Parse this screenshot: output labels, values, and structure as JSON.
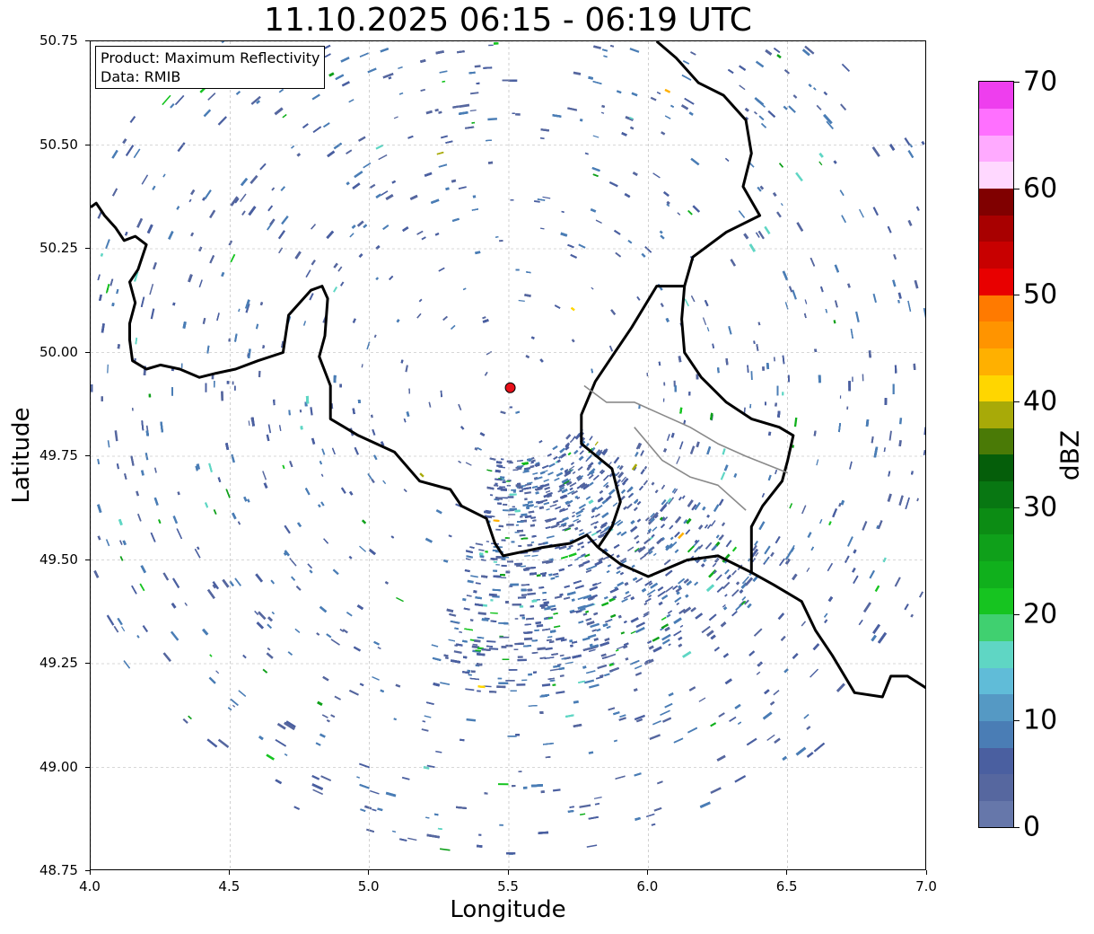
{
  "title": "11.10.2025 06:15 - 06:19 UTC",
  "info_box": {
    "line1": "Product: Maximum Reflectivity",
    "line2": "Data: RMIB"
  },
  "axes": {
    "xlabel": "Longitude",
    "ylabel": "Latitude",
    "xlim": [
      4.0,
      7.0
    ],
    "ylim": [
      48.75,
      50.75
    ],
    "xticks": [
      "4.0",
      "4.5",
      "5.0",
      "5.5",
      "6.0",
      "6.5",
      "7.0"
    ],
    "yticks": [
      "48.75",
      "49.00",
      "49.25",
      "49.50",
      "49.75",
      "50.00",
      "50.25",
      "50.50",
      "50.75"
    ],
    "grid": true
  },
  "radar_site": {
    "lon": 5.505,
    "lat": 49.915,
    "color": "#e8101a"
  },
  "colorbar": {
    "unit": "dBZ",
    "min": 0,
    "max": 70,
    "labels": [
      "0",
      "10",
      "20",
      "30",
      "40",
      "50",
      "60",
      "70"
    ],
    "colors": [
      "#6677aa",
      "#56679f",
      "#4a5fa0",
      "#4a7db5",
      "#5599c4",
      "#60bcd8",
      "#5fd6c4",
      "#40d070",
      "#16c420",
      "#10b01c",
      "#0fa01a",
      "#0c8c14",
      "#087712",
      "#055e0a",
      "#4a7a06",
      "#a8aa08",
      "#ffd600",
      "#ffb000",
      "#ff9400",
      "#ff7a00",
      "#e80000",
      "#c80000",
      "#a80000",
      "#800000",
      "#ffd8ff",
      "#ffaaff",
      "#ff70ff",
      "#ee3eee"
    ]
  },
  "borders": [
    {
      "name": "border-belgium-france-west",
      "color": "#000000",
      "points": [
        [
          4.0,
          50.35
        ],
        [
          4.02,
          50.36
        ],
        [
          4.05,
          50.33
        ],
        [
          4.09,
          50.3
        ],
        [
          4.12,
          50.27
        ],
        [
          4.16,
          50.28
        ],
        [
          4.2,
          50.26
        ],
        [
          4.17,
          50.2
        ],
        [
          4.14,
          50.17
        ],
        [
          4.16,
          50.12
        ],
        [
          4.14,
          50.07
        ],
        [
          4.14,
          50.03
        ],
        [
          4.15,
          49.98
        ],
        [
          4.2,
          49.96
        ],
        [
          4.25,
          49.97
        ],
        [
          4.32,
          49.96
        ],
        [
          4.39,
          49.94
        ],
        [
          4.45,
          49.95
        ],
        [
          4.52,
          49.96
        ],
        [
          4.6,
          49.98
        ],
        [
          4.69,
          50.0
        ],
        [
          4.71,
          50.09
        ],
        [
          4.79,
          50.15
        ],
        [
          4.83,
          50.16
        ],
        [
          4.85,
          50.13
        ],
        [
          4.84,
          50.04
        ],
        [
          4.82,
          49.99
        ],
        [
          4.86,
          49.92
        ],
        [
          4.86,
          49.84
        ],
        [
          4.96,
          49.8
        ],
        [
          5.09,
          49.76
        ],
        [
          5.18,
          49.69
        ],
        [
          5.29,
          49.67
        ],
        [
          5.33,
          49.63
        ],
        [
          5.42,
          49.6
        ],
        [
          5.45,
          49.54
        ],
        [
          5.48,
          49.51
        ],
        [
          5.55,
          49.52
        ],
        [
          5.62,
          49.53
        ],
        [
          5.72,
          49.54
        ],
        [
          5.78,
          49.56
        ],
        [
          5.82,
          49.53
        ]
      ]
    },
    {
      "name": "border-belgium-germany-luxembourg",
      "color": "#000000",
      "points": [
        [
          5.82,
          49.53
        ],
        [
          5.87,
          49.58
        ],
        [
          5.9,
          49.64
        ],
        [
          5.87,
          49.72
        ],
        [
          5.76,
          49.78
        ],
        [
          5.76,
          49.85
        ],
        [
          5.81,
          49.93
        ],
        [
          5.87,
          49.99
        ],
        [
          5.94,
          50.06
        ],
        [
          6.03,
          50.16
        ],
        [
          6.13,
          50.16
        ],
        [
          6.16,
          50.23
        ],
        [
          6.28,
          50.29
        ],
        [
          6.4,
          50.33
        ],
        [
          6.34,
          50.4
        ],
        [
          6.37,
          50.48
        ],
        [
          6.35,
          50.56
        ],
        [
          6.27,
          50.62
        ],
        [
          6.18,
          50.65
        ],
        [
          6.1,
          50.71
        ],
        [
          6.03,
          50.75
        ]
      ]
    },
    {
      "name": "border-luxembourg-germany-france",
      "color": "#000000",
      "points": [
        [
          6.13,
          50.16
        ],
        [
          6.12,
          50.08
        ],
        [
          6.13,
          50.0
        ],
        [
          6.19,
          49.94
        ],
        [
          6.28,
          49.88
        ],
        [
          6.37,
          49.84
        ],
        [
          6.47,
          49.82
        ],
        [
          6.52,
          49.8
        ],
        [
          6.5,
          49.74
        ],
        [
          6.48,
          49.69
        ],
        [
          6.41,
          49.63
        ],
        [
          6.37,
          49.58
        ],
        [
          6.37,
          49.47
        ],
        [
          6.25,
          49.51
        ],
        [
          6.14,
          49.5
        ],
        [
          6.0,
          49.46
        ],
        [
          5.9,
          49.49
        ],
        [
          5.82,
          49.53
        ]
      ]
    },
    {
      "name": "border-germany-france-south",
      "color": "#000000",
      "points": [
        [
          6.37,
          49.47
        ],
        [
          6.45,
          49.44
        ],
        [
          6.55,
          49.4
        ],
        [
          6.6,
          49.33
        ],
        [
          6.66,
          49.27
        ],
        [
          6.74,
          49.18
        ],
        [
          6.84,
          49.17
        ],
        [
          6.87,
          49.22
        ],
        [
          6.93,
          49.22
        ],
        [
          7.0,
          49.19
        ]
      ]
    },
    {
      "name": "border-luxembourg-inner",
      "color": "#8a8a8a",
      "points": [
        [
          5.77,
          49.92
        ],
        [
          5.85,
          49.88
        ],
        [
          5.95,
          49.88
        ],
        [
          6.05,
          49.85
        ],
        [
          6.15,
          49.82
        ],
        [
          6.25,
          49.78
        ],
        [
          6.35,
          49.75
        ],
        [
          6.5,
          49.71
        ]
      ]
    },
    {
      "name": "border-luxembourg-inner-2",
      "color": "#8a8a8a",
      "points": [
        [
          5.95,
          49.82
        ],
        [
          6.05,
          49.74
        ],
        [
          6.15,
          49.7
        ],
        [
          6.25,
          49.68
        ],
        [
          6.35,
          49.62
        ]
      ]
    }
  ]
}
